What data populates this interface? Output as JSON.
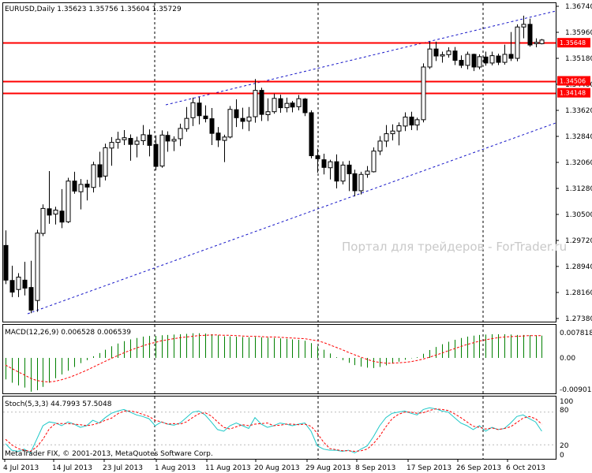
{
  "header": {
    "symbol_line": "EURUSD,Daily  1.35623 1.35756 1.35604 1.35729"
  },
  "macd": {
    "title": "MACD(12,26,9) 0.006528 0.006539",
    "y_labels": [
      "0.007818",
      "0.00",
      "-0.009015"
    ]
  },
  "stoch": {
    "title": "Stoch(5,3,3) 44.7993 57.5048",
    "y_labels": [
      "100",
      "80",
      "20",
      "0"
    ]
  },
  "copyright": "MetaTrader FIX, © 2001-2013, MetaQuotes Software Corp.",
  "watermark": "Портал для трейдеров - ForTrader.ru",
  "colors": {
    "grid_dash": "#000000",
    "hline": "#ff0000",
    "trend": "#1515c8",
    "macd_hist": "#008000",
    "macd_signal": "#ff0000",
    "stoch_main": "#1ec8c8",
    "stoch_signal": "#ff0000"
  },
  "chart_data": {
    "type": "candlestick",
    "y_ticks": [
      "1.36740",
      "1.35960",
      "1.35180",
      "1.34400",
      "1.33620",
      "1.32840",
      "1.32060",
      "1.31280",
      "1.30500",
      "1.29720",
      "1.28940",
      "1.28160",
      "1.27380"
    ],
    "ylim": [
      1.2738,
      1.3674
    ],
    "x_labels": [
      "4 Jul 2013",
      "14 Jul 2013",
      "23 Jul 2013",
      "1 Aug 2013",
      "11 Aug 2013",
      "20 Aug 2013",
      "29 Aug 2013",
      "8 Sep 2013",
      "17 Sep 2013",
      "26 Sep 2013",
      "6 Oct 2013"
    ],
    "price_tags": [
      {
        "label": "1.35648",
        "value": 1.35648
      },
      {
        "label": "1.34506",
        "value": 1.34506
      },
      {
        "label": "1.34148",
        "value": 1.34148
      }
    ],
    "horizontal_lines": [
      1.35648,
      1.34506,
      1.34148
    ],
    "candles": [
      {
        "o": 1.2957,
        "h": 1.3002,
        "l": 1.2841,
        "c": 1.2853
      },
      {
        "o": 1.2852,
        "h": 1.2896,
        "l": 1.2802,
        "c": 1.2817
      },
      {
        "o": 1.2825,
        "h": 1.2874,
        "l": 1.2802,
        "c": 1.2862
      },
      {
        "o": 1.2853,
        "h": 1.2908,
        "l": 1.2807,
        "c": 1.2829
      },
      {
        "o": 1.2831,
        "h": 1.2911,
        "l": 1.2754,
        "c": 1.2763
      },
      {
        "o": 1.2792,
        "h": 1.3004,
        "l": 1.2758,
        "c": 1.2994
      },
      {
        "o": 1.2993,
        "h": 1.308,
        "l": 1.2985,
        "c": 1.3068
      },
      {
        "o": 1.3067,
        "h": 1.318,
        "l": 1.3022,
        "c": 1.3048
      },
      {
        "o": 1.3051,
        "h": 1.3073,
        "l": 1.302,
        "c": 1.3063
      },
      {
        "o": 1.306,
        "h": 1.3126,
        "l": 1.3009,
        "c": 1.3027
      },
      {
        "o": 1.3028,
        "h": 1.316,
        "l": 1.3024,
        "c": 1.315
      },
      {
        "o": 1.315,
        "h": 1.3178,
        "l": 1.3112,
        "c": 1.312
      },
      {
        "o": 1.3118,
        "h": 1.3156,
        "l": 1.3065,
        "c": 1.314
      },
      {
        "o": 1.3141,
        "h": 1.3154,
        "l": 1.3092,
        "c": 1.3132
      },
      {
        "o": 1.3131,
        "h": 1.3208,
        "l": 1.3116,
        "c": 1.3199
      },
      {
        "o": 1.3199,
        "h": 1.3238,
        "l": 1.3132,
        "c": 1.3162
      },
      {
        "o": 1.3165,
        "h": 1.3262,
        "l": 1.3152,
        "c": 1.325
      },
      {
        "o": 1.3249,
        "h": 1.3282,
        "l": 1.3196,
        "c": 1.3266
      },
      {
        "o": 1.3266,
        "h": 1.3298,
        "l": 1.3247,
        "c": 1.3275
      },
      {
        "o": 1.3274,
        "h": 1.3303,
        "l": 1.3258,
        "c": 1.328
      },
      {
        "o": 1.3278,
        "h": 1.329,
        "l": 1.3211,
        "c": 1.326
      },
      {
        "o": 1.326,
        "h": 1.3283,
        "l": 1.3221,
        "c": 1.327
      },
      {
        "o": 1.3271,
        "h": 1.3318,
        "l": 1.3258,
        "c": 1.3289
      },
      {
        "o": 1.3288,
        "h": 1.3305,
        "l": 1.3224,
        "c": 1.3257
      },
      {
        "o": 1.326,
        "h": 1.3287,
        "l": 1.3182,
        "c": 1.3194
      },
      {
        "o": 1.3195,
        "h": 1.3302,
        "l": 1.319,
        "c": 1.3288
      },
      {
        "o": 1.3287,
        "h": 1.3299,
        "l": 1.3238,
        "c": 1.327
      },
      {
        "o": 1.327,
        "h": 1.3284,
        "l": 1.324,
        "c": 1.3275
      },
      {
        "o": 1.3277,
        "h": 1.3322,
        "l": 1.3255,
        "c": 1.3308
      },
      {
        "o": 1.3307,
        "h": 1.3372,
        "l": 1.3298,
        "c": 1.3338
      },
      {
        "o": 1.334,
        "h": 1.34,
        "l": 1.3315,
        "c": 1.3385
      },
      {
        "o": 1.3384,
        "h": 1.3402,
        "l": 1.332,
        "c": 1.3346
      },
      {
        "o": 1.3345,
        "h": 1.3377,
        "l": 1.3326,
        "c": 1.3337
      },
      {
        "o": 1.3337,
        "h": 1.3369,
        "l": 1.3258,
        "c": 1.3293
      },
      {
        "o": 1.3294,
        "h": 1.3312,
        "l": 1.3252,
        "c": 1.3273
      },
      {
        "o": 1.3272,
        "h": 1.3289,
        "l": 1.3207,
        "c": 1.3282
      },
      {
        "o": 1.3282,
        "h": 1.3375,
        "l": 1.3278,
        "c": 1.3365
      },
      {
        "o": 1.3364,
        "h": 1.3395,
        "l": 1.3312,
        "c": 1.334
      },
      {
        "o": 1.3338,
        "h": 1.337,
        "l": 1.3306,
        "c": 1.3329
      },
      {
        "o": 1.333,
        "h": 1.3372,
        "l": 1.33,
        "c": 1.3342
      },
      {
        "o": 1.3343,
        "h": 1.3456,
        "l": 1.3325,
        "c": 1.3422
      },
      {
        "o": 1.3422,
        "h": 1.343,
        "l": 1.333,
        "c": 1.335
      },
      {
        "o": 1.3349,
        "h": 1.3398,
        "l": 1.333,
        "c": 1.3358
      },
      {
        "o": 1.3358,
        "h": 1.3412,
        "l": 1.3352,
        "c": 1.3398
      },
      {
        "o": 1.3397,
        "h": 1.3409,
        "l": 1.3355,
        "c": 1.337
      },
      {
        "o": 1.337,
        "h": 1.34,
        "l": 1.3356,
        "c": 1.3383
      },
      {
        "o": 1.3384,
        "h": 1.339,
        "l": 1.3356,
        "c": 1.3372
      },
      {
        "o": 1.3373,
        "h": 1.3408,
        "l": 1.3362,
        "c": 1.3397
      },
      {
        "o": 1.3396,
        "h": 1.3399,
        "l": 1.3345,
        "c": 1.3355
      },
      {
        "o": 1.3355,
        "h": 1.3362,
        "l": 1.3218,
        "c": 1.3226
      },
      {
        "o": 1.3226,
        "h": 1.3247,
        "l": 1.3175,
        "c": 1.3217
      },
      {
        "o": 1.3214,
        "h": 1.3232,
        "l": 1.317,
        "c": 1.3191
      },
      {
        "o": 1.319,
        "h": 1.3214,
        "l": 1.3155,
        "c": 1.3208
      },
      {
        "o": 1.3208,
        "h": 1.323,
        "l": 1.3128,
        "c": 1.315
      },
      {
        "o": 1.315,
        "h": 1.3209,
        "l": 1.314,
        "c": 1.3198
      },
      {
        "o": 1.3198,
        "h": 1.3211,
        "l": 1.312,
        "c": 1.3172
      },
      {
        "o": 1.3172,
        "h": 1.3184,
        "l": 1.3104,
        "c": 1.3121
      },
      {
        "o": 1.3121,
        "h": 1.3178,
        "l": 1.311,
        "c": 1.317
      },
      {
        "o": 1.317,
        "h": 1.3195,
        "l": 1.316,
        "c": 1.318
      },
      {
        "o": 1.3178,
        "h": 1.3251,
        "l": 1.3176,
        "c": 1.324
      },
      {
        "o": 1.324,
        "h": 1.3285,
        "l": 1.3228,
        "c": 1.327
      },
      {
        "o": 1.327,
        "h": 1.3318,
        "l": 1.3252,
        "c": 1.3292
      },
      {
        "o": 1.3292,
        "h": 1.332,
        "l": 1.3272,
        "c": 1.33
      },
      {
        "o": 1.33,
        "h": 1.3326,
        "l": 1.3257,
        "c": 1.3316
      },
      {
        "o": 1.3315,
        "h": 1.3356,
        "l": 1.33,
        "c": 1.3342
      },
      {
        "o": 1.3342,
        "h": 1.3358,
        "l": 1.3303,
        "c": 1.3318
      },
      {
        "o": 1.3318,
        "h": 1.334,
        "l": 1.3302,
        "c": 1.3334
      },
      {
        "o": 1.3334,
        "h": 1.3503,
        "l": 1.3326,
        "c": 1.3492
      },
      {
        "o": 1.3492,
        "h": 1.3568,
        "l": 1.3486,
        "c": 1.3546
      },
      {
        "o": 1.3546,
        "h": 1.3568,
        "l": 1.351,
        "c": 1.3525
      },
      {
        "o": 1.3525,
        "h": 1.3538,
        "l": 1.3505,
        "c": 1.3529
      },
      {
        "o": 1.3529,
        "h": 1.3551,
        "l": 1.352,
        "c": 1.354
      },
      {
        "o": 1.354,
        "h": 1.3552,
        "l": 1.3498,
        "c": 1.3512
      },
      {
        "o": 1.3512,
        "h": 1.3527,
        "l": 1.3489,
        "c": 1.3497
      },
      {
        "o": 1.3497,
        "h": 1.3538,
        "l": 1.3485,
        "c": 1.353
      },
      {
        "o": 1.353,
        "h": 1.3532,
        "l": 1.348,
        "c": 1.3492
      },
      {
        "o": 1.3492,
        "h": 1.353,
        "l": 1.3485,
        "c": 1.3523
      },
      {
        "o": 1.3522,
        "h": 1.3538,
        "l": 1.3496,
        "c": 1.3504
      },
      {
        "o": 1.3504,
        "h": 1.3538,
        "l": 1.3497,
        "c": 1.3526
      },
      {
        "o": 1.3525,
        "h": 1.3532,
        "l": 1.3498,
        "c": 1.3506
      },
      {
        "o": 1.3506,
        "h": 1.3559,
        "l": 1.3499,
        "c": 1.353
      },
      {
        "o": 1.353,
        "h": 1.3597,
        "l": 1.351,
        "c": 1.3518
      },
      {
        "o": 1.3518,
        "h": 1.362,
        "l": 1.3509,
        "c": 1.3612
      },
      {
        "o": 1.3612,
        "h": 1.3646,
        "l": 1.3578,
        "c": 1.362
      },
      {
        "o": 1.362,
        "h": 1.3637,
        "l": 1.3553,
        "c": 1.3558
      },
      {
        "o": 1.3562,
        "h": 1.3578,
        "l": 1.3551,
        "c": 1.3566
      },
      {
        "o": 1.3562,
        "h": 1.3576,
        "l": 1.356,
        "c": 1.3573
      }
    ],
    "macd_hist": [
      -0.0057,
      -0.0066,
      -0.0073,
      -0.0079,
      -0.009,
      -0.0086,
      -0.0077,
      -0.0066,
      -0.0054,
      -0.0044,
      -0.0034,
      -0.0024,
      -0.0014,
      -0.0006,
      0.0005,
      0.0014,
      0.0024,
      0.0034,
      0.0042,
      0.0049,
      0.0054,
      0.0058,
      0.0062,
      0.0064,
      0.0064,
      0.0066,
      0.0067,
      0.0068,
      0.0069,
      0.007,
      0.0072,
      0.0072,
      0.0071,
      0.0069,
      0.0066,
      0.0063,
      0.0063,
      0.0062,
      0.0061,
      0.006,
      0.0061,
      0.006,
      0.0059,
      0.0058,
      0.0057,
      0.0056,
      0.0054,
      0.0053,
      0.005,
      0.0043,
      0.0034,
      0.0024,
      0.0013,
      0.0002,
      -0.0006,
      -0.0013,
      -0.0019,
      -0.0023,
      -0.0026,
      -0.0027,
      -0.0024,
      -0.002,
      -0.0015,
      -0.001,
      -0.0005,
      -0.0001,
      0.0002,
      0.0012,
      0.0023,
      0.0032,
      0.004,
      0.0047,
      0.0053,
      0.0058,
      0.0062,
      0.0065,
      0.0067,
      0.0068,
      0.0069,
      0.0069,
      0.0069,
      0.0068,
      0.0067,
      0.0067,
      0.0066,
      0.0066,
      0.0065
    ],
    "macd_signal": [
      -0.0019,
      -0.0028,
      -0.0037,
      -0.0045,
      -0.0054,
      -0.006,
      -0.0063,
      -0.0064,
      -0.0062,
      -0.0058,
      -0.0053,
      -0.0047,
      -0.004,
      -0.0033,
      -0.0025,
      -0.0017,
      -0.0009,
      -0.0001,
      0.0007,
      0.0015,
      0.0022,
      0.0029,
      0.0035,
      0.0041,
      0.0045,
      0.005,
      0.0053,
      0.0056,
      0.0059,
      0.0061,
      0.0063,
      0.0065,
      0.0066,
      0.0067,
      0.0067,
      0.0066,
      0.0066,
      0.0065,
      0.0064,
      0.0063,
      0.0063,
      0.0062,
      0.0061,
      0.0061,
      0.006,
      0.0059,
      0.0058,
      0.0057,
      0.0056,
      0.0053,
      0.005,
      0.0045,
      0.0038,
      0.0031,
      0.0024,
      0.0016,
      0.0009,
      0.0002,
      -0.0004,
      -0.0009,
      -0.0012,
      -0.0014,
      -0.0014,
      -0.0013,
      -0.0012,
      -0.001,
      -0.0007,
      -0.0003,
      0.0002,
      0.0008,
      0.0014,
      0.0021,
      0.0027,
      0.0033,
      0.0039,
      0.0044,
      0.0049,
      0.0053,
      0.0056,
      0.0059,
      0.0061,
      0.0062,
      0.0063,
      0.0064,
      0.0065,
      0.0065,
      0.0065
    ],
    "stoch_main": [
      22,
      10,
      8,
      12,
      5,
      30,
      55,
      62,
      60,
      55,
      62,
      58,
      52,
      55,
      65,
      60,
      70,
      78,
      82,
      85,
      80,
      75,
      72,
      68,
      55,
      62,
      58,
      56,
      60,
      70,
      80,
      82,
      75,
      62,
      48,
      45,
      55,
      60,
      55,
      50,
      70,
      58,
      52,
      55,
      60,
      58,
      55,
      58,
      60,
      45,
      18,
      12,
      10,
      10,
      8,
      10,
      5,
      12,
      18,
      35,
      55,
      70,
      78,
      80,
      82,
      78,
      75,
      85,
      88,
      86,
      82,
      80,
      70,
      60,
      55,
      48,
      55,
      45,
      52,
      48,
      50,
      60,
      72,
      75,
      68,
      62,
      45
    ],
    "stoch_signal": [
      30,
      20,
      13,
      10,
      8,
      16,
      30,
      49,
      59,
      59,
      59,
      58,
      57,
      55,
      57,
      60,
      65,
      69,
      77,
      82,
      82,
      80,
      76,
      72,
      65,
      62,
      58,
      59,
      58,
      62,
      70,
      77,
      79,
      73,
      62,
      52,
      49,
      53,
      57,
      55,
      58,
      59,
      60,
      55,
      56,
      58,
      58,
      57,
      58,
      54,
      41,
      25,
      13,
      11,
      9,
      9,
      8,
      9,
      12,
      22,
      36,
      53,
      68,
      76,
      80,
      80,
      78,
      79,
      83,
      86,
      85,
      83,
      77,
      70,
      62,
      54,
      52,
      49,
      51,
      48,
      50,
      53,
      61,
      69,
      72,
      68,
      58
    ]
  }
}
